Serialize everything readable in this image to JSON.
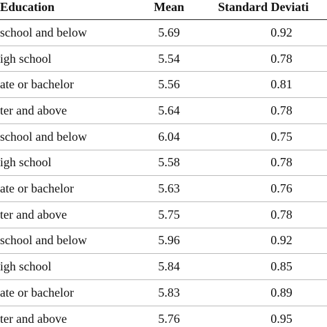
{
  "table": {
    "header": [
      "Education",
      "Mean",
      "Standard Deviati"
    ],
    "rows": [
      [
        "school and below",
        "5.69",
        "0.92"
      ],
      [
        "igh school",
        "5.54",
        "0.78"
      ],
      [
        "ate or bachelor",
        "5.56",
        "0.81"
      ],
      [
        "ter and above",
        "5.64",
        "0.78"
      ],
      [
        "school and below",
        "6.04",
        "0.75"
      ],
      [
        "igh school",
        "5.58",
        "0.78"
      ],
      [
        "ate or bachelor",
        "5.63",
        "0.76"
      ],
      [
        "ter and above",
        "5.75",
        "0.78"
      ],
      [
        "school and below",
        "5.96",
        "0.92"
      ],
      [
        "igh school",
        "5.84",
        "0.85"
      ],
      [
        "ate or bachelor",
        "5.83",
        "0.89"
      ],
      [
        "ter and above",
        "5.76",
        "0.95"
      ]
    ]
  }
}
